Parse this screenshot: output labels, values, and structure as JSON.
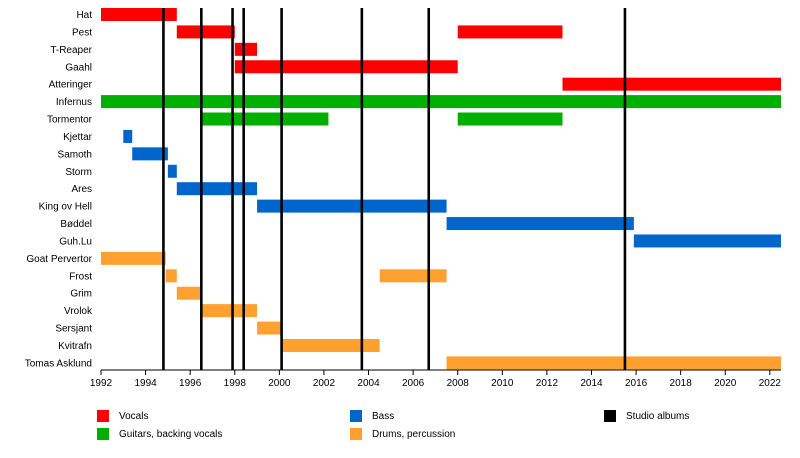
{
  "chart_data": {
    "type": "timeline",
    "x_ticks": [
      1992,
      1994,
      1996,
      1998,
      2000,
      2002,
      2004,
      2006,
      2008,
      2010,
      2012,
      2014,
      2016,
      2018,
      2020,
      2022
    ],
    "xlim": [
      1992,
      2022.5
    ],
    "members": [
      {
        "name": "Hat",
        "spans": [
          {
            "start": 1992.0,
            "end": 1995.4,
            "role": "vocals"
          }
        ]
      },
      {
        "name": "Pest",
        "spans": [
          {
            "start": 1995.4,
            "end": 1998.0,
            "role": "vocals"
          },
          {
            "start": 2008.0,
            "end": 2012.7,
            "role": "vocals"
          }
        ]
      },
      {
        "name": "T-Reaper",
        "spans": [
          {
            "start": 1998.0,
            "end": 1999.0,
            "role": "vocals"
          }
        ]
      },
      {
        "name": "Gaahl",
        "spans": [
          {
            "start": 1998.0,
            "end": 2008.0,
            "role": "vocals"
          }
        ]
      },
      {
        "name": "Atteringer",
        "spans": [
          {
            "start": 2012.7,
            "end": 2022.5,
            "role": "vocals"
          }
        ]
      },
      {
        "name": "Infernus",
        "spans": [
          {
            "start": 1992.0,
            "end": 2022.5,
            "role": "guitars"
          }
        ]
      },
      {
        "name": "Tormentor",
        "spans": [
          {
            "start": 1996.5,
            "end": 2002.2,
            "role": "guitars"
          },
          {
            "start": 2008.0,
            "end": 2012.7,
            "role": "guitars"
          }
        ]
      },
      {
        "name": "Kjettar",
        "spans": [
          {
            "start": 1993.0,
            "end": 1993.4,
            "role": "bass"
          }
        ]
      },
      {
        "name": "Samoth",
        "spans": [
          {
            "start": 1993.4,
            "end": 1995.0,
            "role": "bass"
          }
        ]
      },
      {
        "name": "Storm",
        "spans": [
          {
            "start": 1995.0,
            "end": 1995.4,
            "role": "bass"
          }
        ]
      },
      {
        "name": "Ares",
        "spans": [
          {
            "start": 1995.4,
            "end": 1999.0,
            "role": "bass"
          }
        ]
      },
      {
        "name": "King ov Hell",
        "spans": [
          {
            "start": 1999.0,
            "end": 2007.5,
            "role": "bass"
          }
        ]
      },
      {
        "name": "Bøddel",
        "spans": [
          {
            "start": 2007.5,
            "end": 2015.9,
            "role": "bass"
          }
        ]
      },
      {
        "name": "Guh.Lu",
        "spans": [
          {
            "start": 2015.9,
            "end": 2022.5,
            "role": "bass"
          }
        ]
      },
      {
        "name": "Goat Pervertor",
        "spans": [
          {
            "start": 1992.0,
            "end": 1994.9,
            "role": "drums"
          }
        ]
      },
      {
        "name": "Frost",
        "spans": [
          {
            "start": 1994.9,
            "end": 1995.4,
            "role": "drums"
          },
          {
            "start": 2004.5,
            "end": 2007.5,
            "role": "drums"
          }
        ]
      },
      {
        "name": "Grim",
        "spans": [
          {
            "start": 1995.4,
            "end": 1996.5,
            "role": "drums"
          }
        ]
      },
      {
        "name": "Vrolok",
        "spans": [
          {
            "start": 1996.5,
            "end": 1999.0,
            "role": "drums"
          }
        ]
      },
      {
        "name": "Sersjant",
        "spans": [
          {
            "start": 1999.0,
            "end": 2000.1,
            "role": "drums"
          }
        ]
      },
      {
        "name": "Kvitrafn",
        "spans": [
          {
            "start": 2000.1,
            "end": 2004.5,
            "role": "drums"
          }
        ]
      },
      {
        "name": "Tomas Asklund",
        "spans": [
          {
            "start": 2007.5,
            "end": 2022.5,
            "role": "drums"
          }
        ]
      }
    ],
    "studio_albums": [
      1994.8,
      1996.5,
      1997.9,
      1998.4,
      2000.1,
      2003.7,
      2006.7,
      2015.5
    ],
    "roles": {
      "vocals": {
        "label": "Vocals",
        "color": "#ff0000"
      },
      "guitars": {
        "label": "Guitars, backing vocals",
        "color": "#00b000"
      },
      "bass": {
        "label": "Bass",
        "color": "#0066cc"
      },
      "drums": {
        "label": "Drums, percussion",
        "color": "#ffa030"
      }
    },
    "albums_legend": {
      "label": "Studio albums",
      "color": "#000000"
    }
  }
}
